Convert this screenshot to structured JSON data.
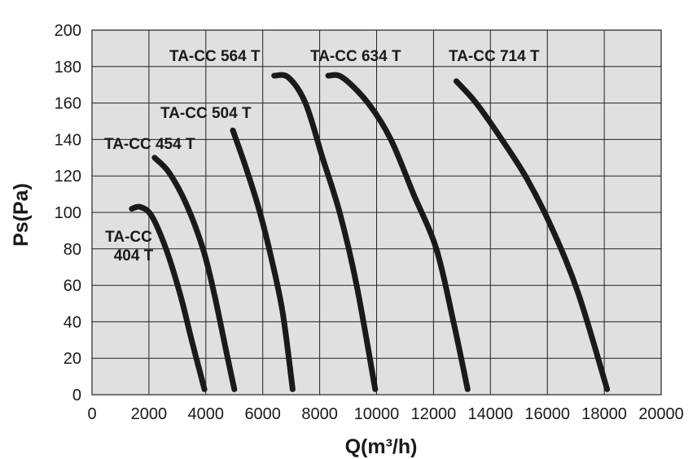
{
  "chart_data": {
    "type": "line",
    "xlabel": "Q(m³/h)",
    "ylabel": "Ps(Pa)",
    "xlim": [
      0,
      20000
    ],
    "ylim": [
      0,
      200
    ],
    "x_ticks": [
      "0",
      "2000",
      "4000",
      "6000",
      "8000",
      "10000",
      "12000",
      "14000",
      "16000",
      "18000",
      "20000"
    ],
    "y_ticks": [
      "0",
      "20",
      "40",
      "60",
      "80",
      "100",
      "120",
      "140",
      "160",
      "180",
      "200"
    ],
    "grid": true,
    "series": [
      {
        "name": "TA-CC 404 T",
        "label_lines": [
          "TA-CC",
          "404 T"
        ],
        "x": [
          1400,
          1700,
          2100,
          2600,
          3100,
          3500,
          3950
        ],
        "y": [
          102,
          103,
          98,
          80,
          55,
          30,
          3
        ]
      },
      {
        "name": "TA-CC 454 T",
        "label_lines": [
          "TA-CC 454 T"
        ],
        "x": [
          2200,
          2700,
          3300,
          3900,
          4300,
          4700,
          5000
        ],
        "y": [
          130,
          122,
          105,
          80,
          55,
          25,
          3
        ]
      },
      {
        "name": "TA-CC 504 T",
        "label_lines": [
          "TA-CC 504 T"
        ],
        "x": [
          4950,
          5400,
          5900,
          6300,
          6700,
          7050
        ],
        "y": [
          145,
          125,
          100,
          75,
          45,
          3
        ]
      },
      {
        "name": "TA-CC 564 T",
        "label_lines": [
          "TA-CC 564 T"
        ],
        "x": [
          6400,
          6900,
          7500,
          8100,
          8700,
          9300,
          9950
        ],
        "y": [
          175,
          174,
          160,
          130,
          100,
          60,
          3
        ]
      },
      {
        "name": "TA-CC 634 T",
        "label_lines": [
          "TA-CC 634 T"
        ],
        "x": [
          8300,
          8800,
          9700,
          10500,
          11300,
          12100,
          12700,
          13200
        ],
        "y": [
          175,
          174,
          160,
          140,
          110,
          80,
          40,
          3
        ]
      },
      {
        "name": "TA-CC 714 T",
        "label_lines": [
          "TA-CC 714 T"
        ],
        "x": [
          12800,
          13500,
          14400,
          15300,
          16200,
          17100,
          18100
        ],
        "y": [
          172,
          160,
          140,
          118,
          90,
          55,
          3
        ]
      }
    ]
  }
}
